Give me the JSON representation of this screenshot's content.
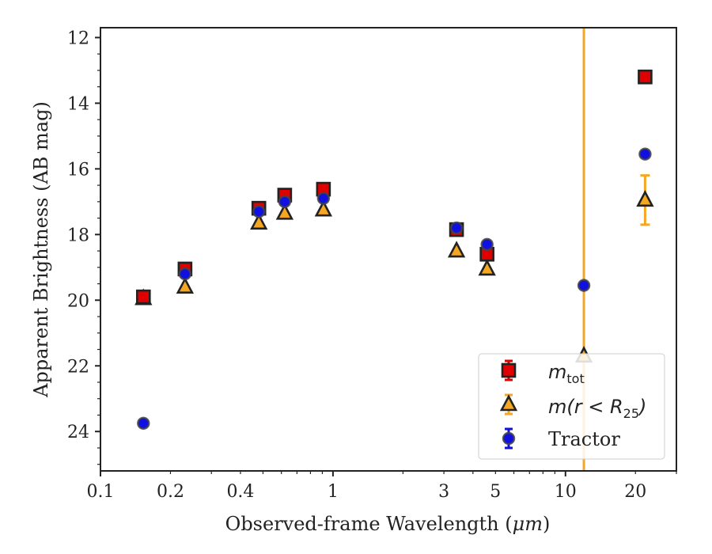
{
  "chart_data": {
    "type": "scatter",
    "xlabel_main": "Observed-frame Wavelength (",
    "xlabel_unit": "μm",
    "xlabel_close": ")",
    "ylabel": "Apparent Brightness (AB mag)",
    "xscale": "log",
    "xlim": [
      0.1,
      30
    ],
    "ylim": [
      25.2,
      11.7
    ],
    "y_inverted": true,
    "x_ticks": [
      0.1,
      0.2,
      0.4,
      1,
      3,
      5,
      10,
      20
    ],
    "x_tick_labels": [
      "0.1",
      "0.2",
      "0.4",
      "1",
      "3",
      "5",
      "10",
      "20"
    ],
    "y_ticks": [
      12,
      14,
      16,
      18,
      20,
      22,
      24
    ],
    "y_tick_labels": [
      "12",
      "14",
      "16",
      "18",
      "20",
      "22",
      "24"
    ],
    "legend_position": "lower-right",
    "series": [
      {
        "key": "mtot",
        "marker": "square",
        "color": "#e00000",
        "errcolor": "#e00000",
        "legend_symbol": "m",
        "legend_sub": "tot",
        "points": [
          {
            "x": 0.153,
            "y": 19.9
          },
          {
            "x": 0.231,
            "y": 19.05
          },
          {
            "x": 0.48,
            "y": 17.2
          },
          {
            "x": 0.62,
            "y": 16.8
          },
          {
            "x": 0.91,
            "y": 16.62
          },
          {
            "x": 3.4,
            "y": 17.85
          },
          {
            "x": 4.6,
            "y": 18.6
          },
          {
            "x": 22.0,
            "y": 13.2
          }
        ]
      },
      {
        "key": "mr25",
        "marker": "triangle",
        "color": "#f5a623",
        "errcolor": "#f5a623",
        "legend_symbol": "m",
        "legend_math": "(r < R",
        "legend_sub": "25",
        "legend_close": ")",
        "points": [
          {
            "x": 0.153,
            "y": 19.95
          },
          {
            "x": 0.231,
            "y": 19.6
          },
          {
            "x": 0.48,
            "y": 17.65
          },
          {
            "x": 0.62,
            "y": 17.35
          },
          {
            "x": 0.91,
            "y": 17.25
          },
          {
            "x": 3.4,
            "y": 18.5
          },
          {
            "x": 4.6,
            "y": 19.05
          },
          {
            "x": 12.0,
            "y": 21.7,
            "err_full_axis": true
          },
          {
            "x": 22.0,
            "y": 16.95,
            "err": 0.75
          }
        ]
      },
      {
        "key": "tractor",
        "marker": "circle",
        "color": "#1010e0",
        "errcolor": "#1010e0",
        "legend_label": "Tractor",
        "points": [
          {
            "x": 0.153,
            "y": 23.75
          },
          {
            "x": 0.231,
            "y": 19.2
          },
          {
            "x": 0.48,
            "y": 17.3
          },
          {
            "x": 0.62,
            "y": 17.0
          },
          {
            "x": 0.91,
            "y": 16.9
          },
          {
            "x": 3.4,
            "y": 17.8
          },
          {
            "x": 4.6,
            "y": 18.3
          },
          {
            "x": 12.0,
            "y": 19.55
          },
          {
            "x": 22.0,
            "y": 15.55
          }
        ]
      }
    ]
  }
}
